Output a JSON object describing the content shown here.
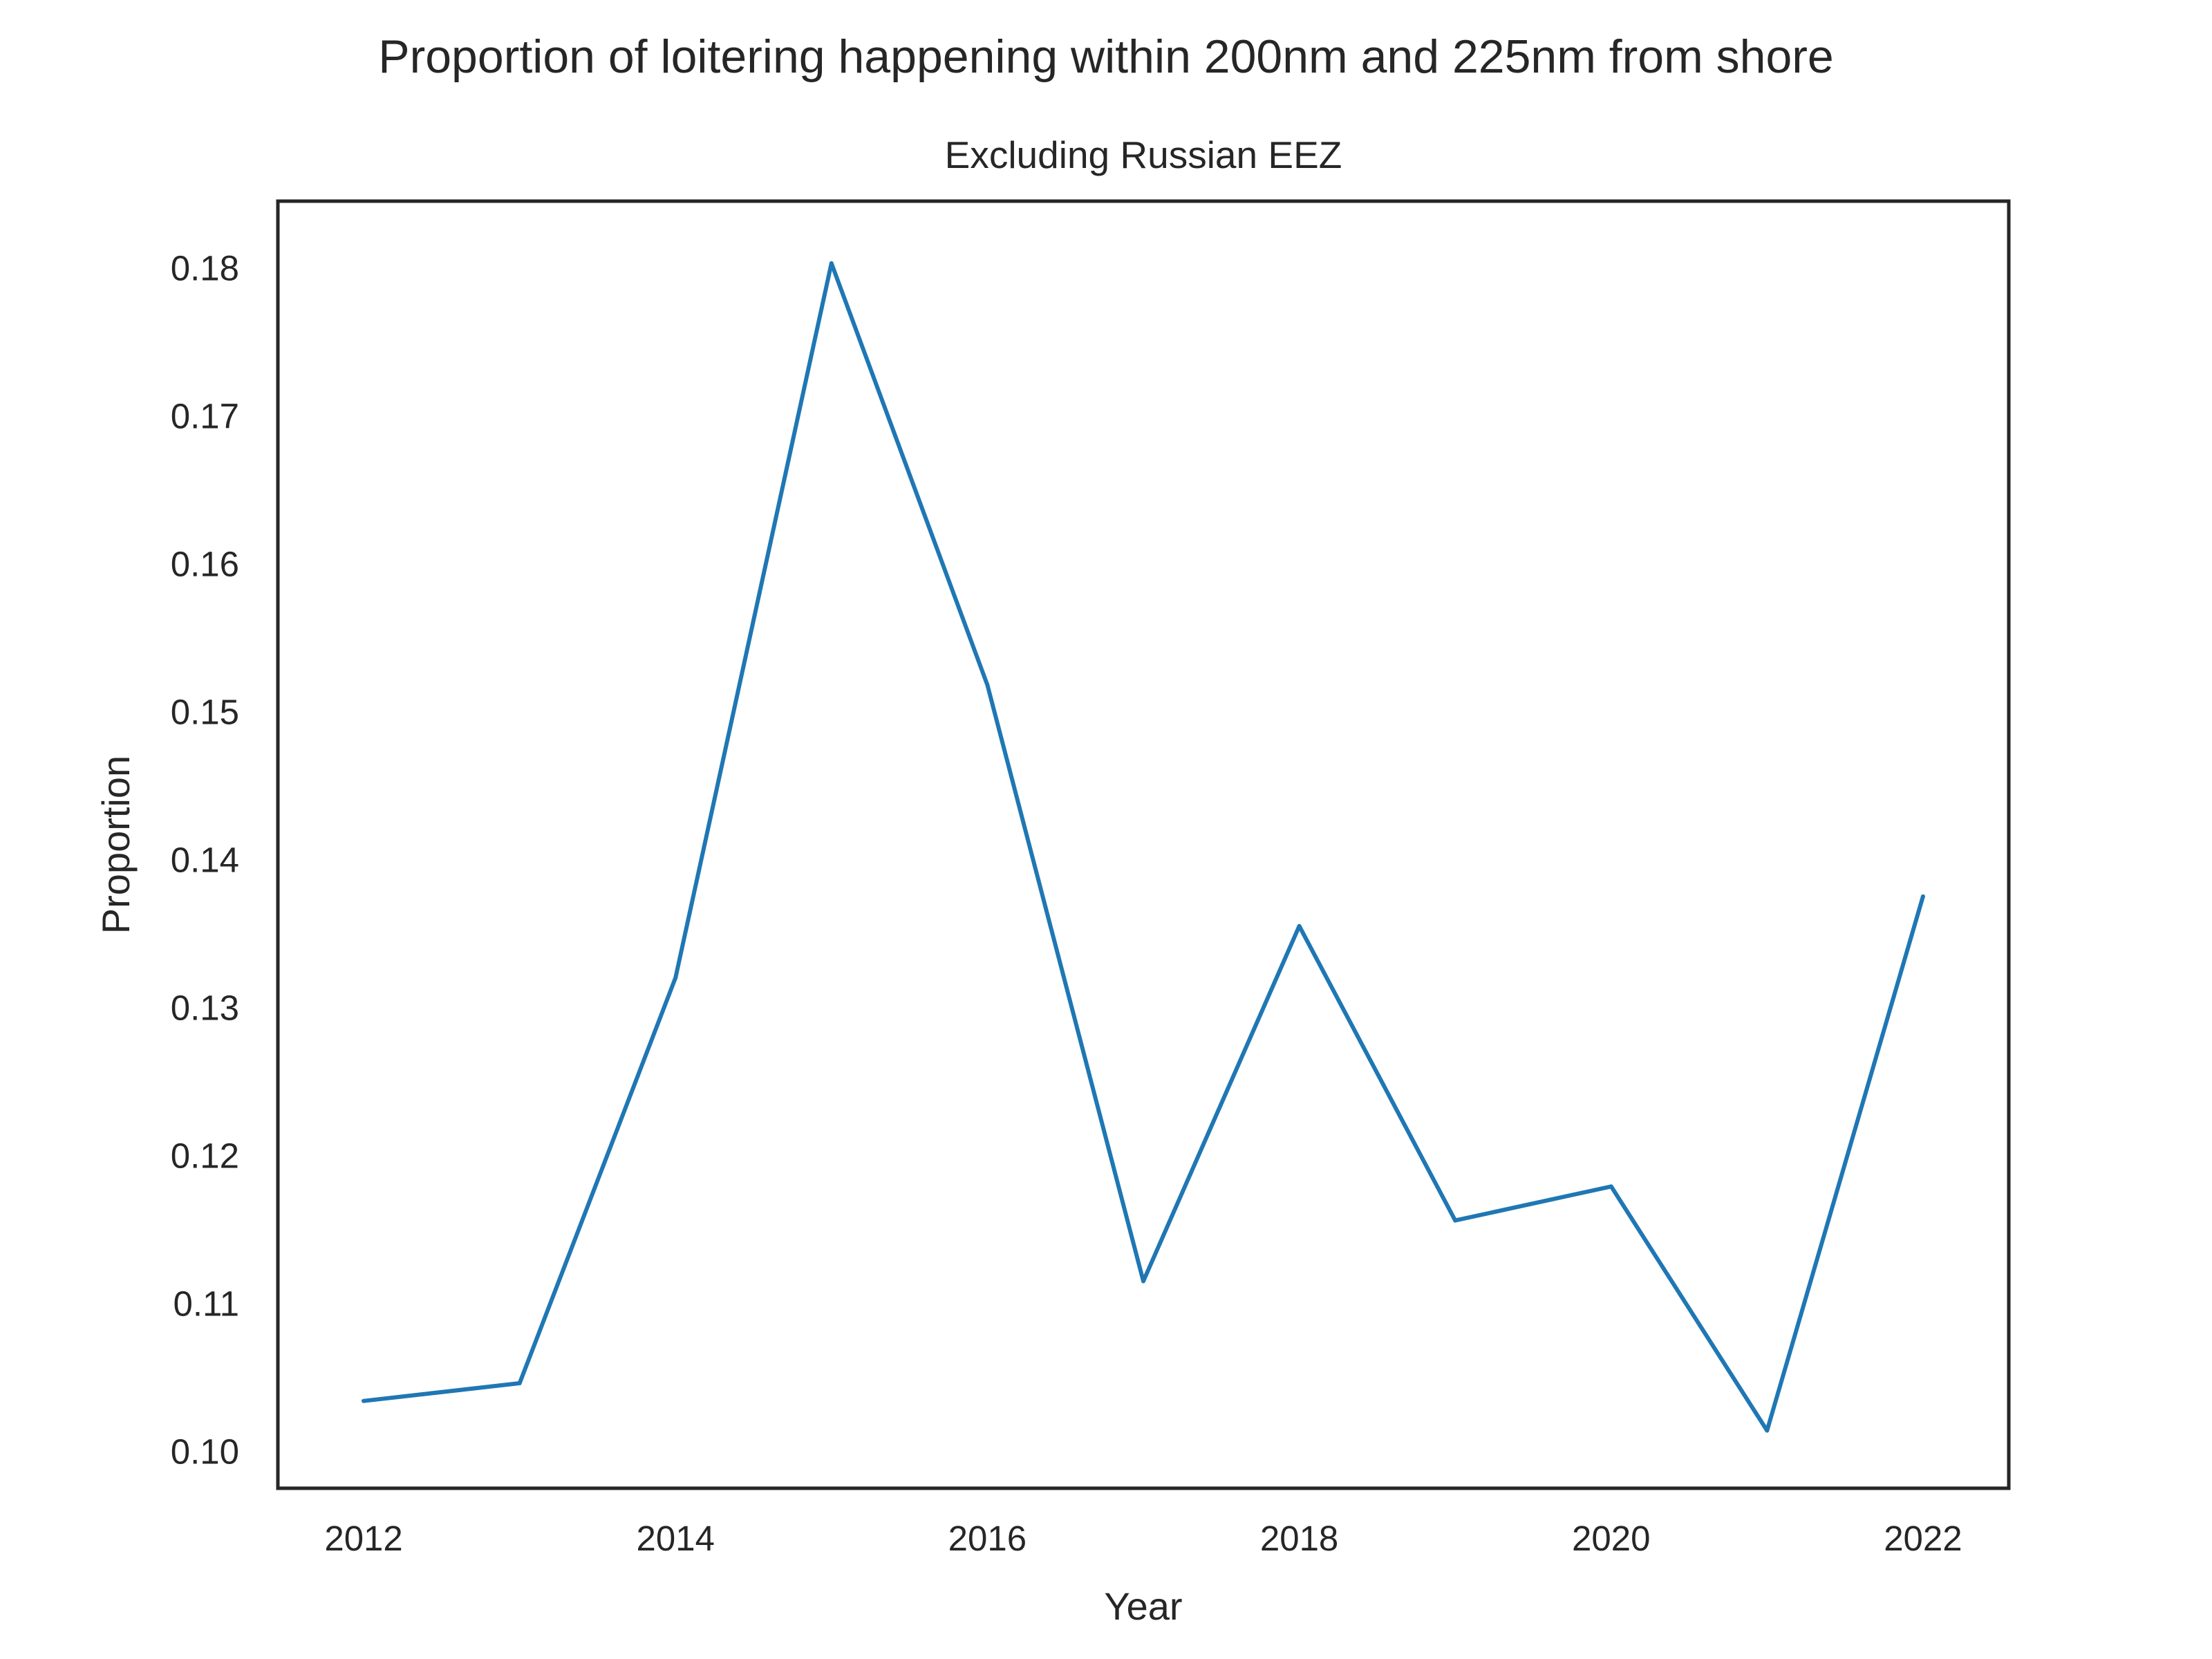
{
  "chart_data": {
    "type": "line",
    "title": "Proportion of loitering happening within 200nm and 225nm from shore",
    "subtitle": "Excluding Russian EEZ",
    "xlabel": "Year",
    "ylabel": "Proportion",
    "x": [
      2012,
      2013,
      2014,
      2015,
      2016,
      2017,
      2018,
      2019,
      2020,
      2021,
      2022
    ],
    "series": [
      {
        "values": [
          0.1034,
          0.1046,
          0.132,
          0.1803,
          0.1518,
          0.1115,
          0.1355,
          0.1156,
          0.1179,
          0.1014,
          0.1375
        ],
        "color": "#1f77b4"
      }
    ],
    "xlim": [
      2011.45,
      2022.55
    ],
    "ylim": [
      0.0975,
      0.1845
    ],
    "xticks": [
      2012,
      2014,
      2016,
      2018,
      2020,
      2022
    ],
    "xtick_labels": [
      "2012",
      "2014",
      "2016",
      "2018",
      "2020",
      "2022"
    ],
    "yticks": [
      0.1,
      0.11,
      0.12,
      0.13,
      0.14,
      0.15,
      0.16,
      0.17,
      0.18
    ],
    "ytick_labels": [
      "0.10",
      "0.11",
      "0.12",
      "0.13",
      "0.14",
      "0.15",
      "0.16",
      "0.17",
      "0.18"
    ],
    "grid": false,
    "legend": "none"
  }
}
